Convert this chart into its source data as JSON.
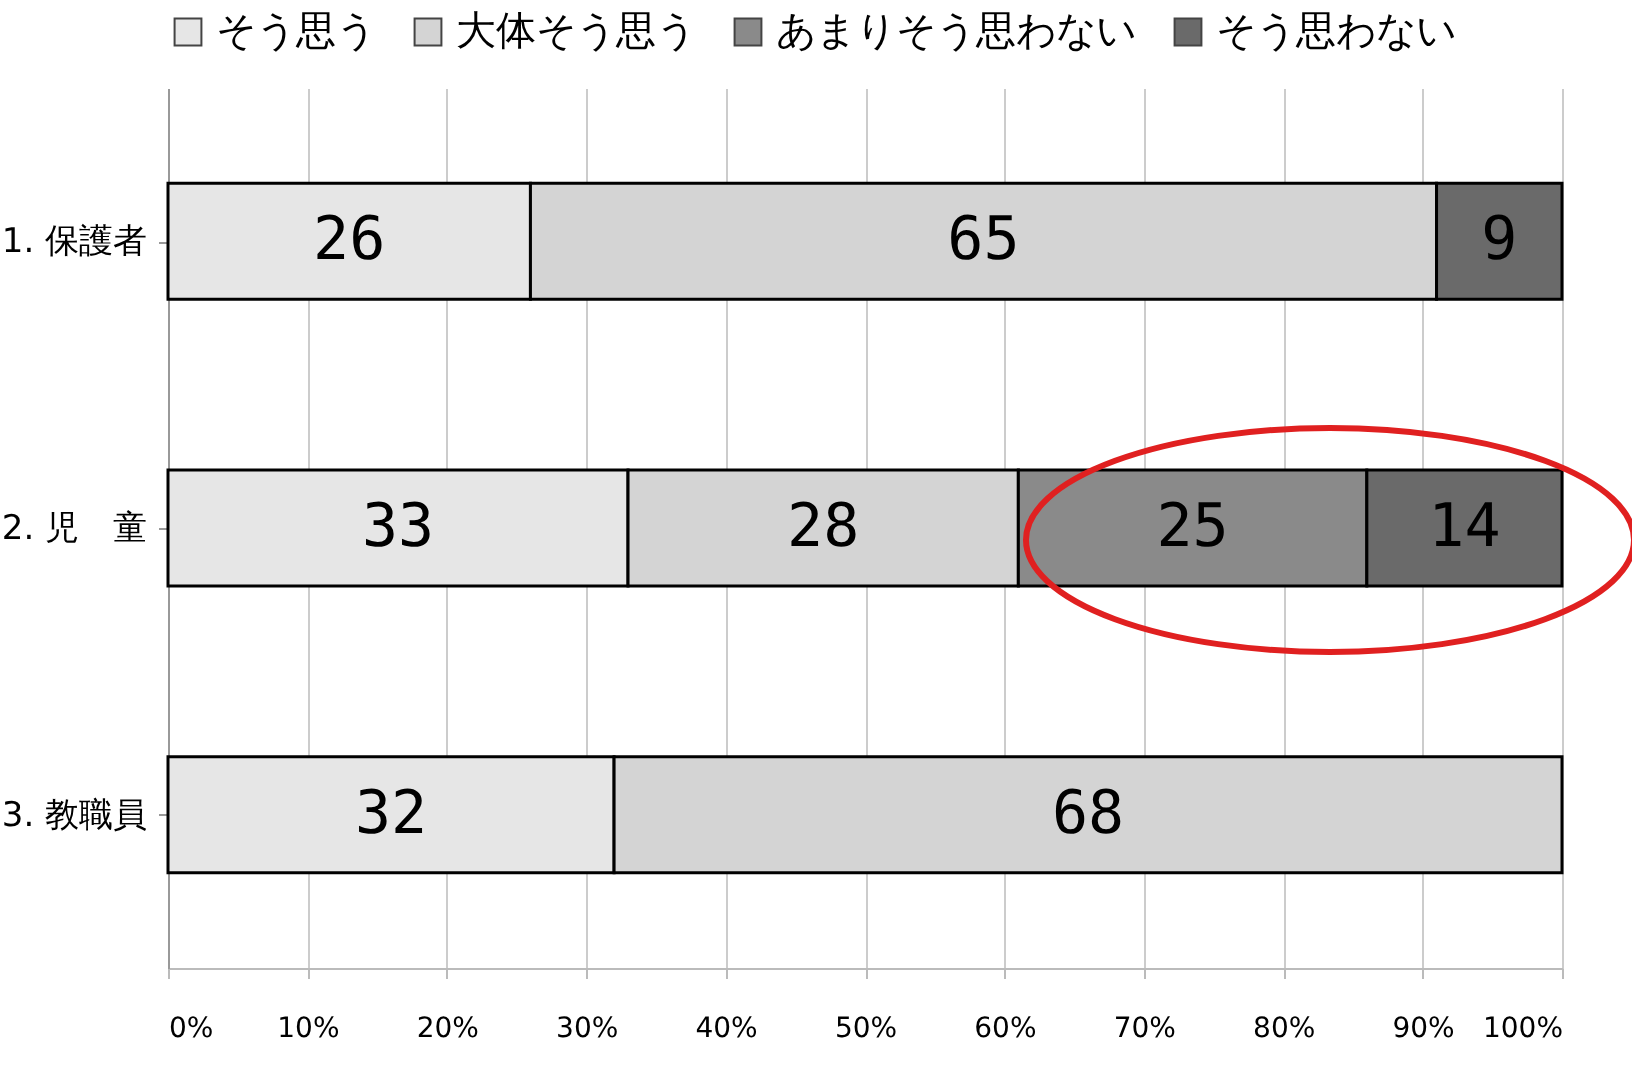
{
  "chart_data": {
    "type": "bar",
    "orientation": "horizontal",
    "stacked": true,
    "categories": [
      "1. 保護者",
      "2. 児　童",
      "3. 教職員"
    ],
    "series": [
      {
        "name": "そう思う",
        "color": "#e6e6e6",
        "values": [
          26,
          33,
          32
        ]
      },
      {
        "name": "大体そう思う",
        "color": "#d4d4d4",
        "values": [
          65,
          28,
          68
        ]
      },
      {
        "name": "あまりそう思わない",
        "color": "#8a8a8a",
        "values": [
          null,
          25,
          null
        ]
      },
      {
        "name": "そう思わない",
        "color": "#6a6a6a",
        "values": [
          9,
          14,
          null
        ]
      }
    ],
    "xlim": [
      0,
      100
    ],
    "xticks": [
      {
        "value": 0,
        "label": "0%"
      },
      {
        "value": 10,
        "label": "10%"
      },
      {
        "value": 20,
        "label": "20%"
      },
      {
        "value": 30,
        "label": "30%"
      },
      {
        "value": 40,
        "label": "40%"
      },
      {
        "value": 50,
        "label": "50%"
      },
      {
        "value": 60,
        "label": "60%"
      },
      {
        "value": 70,
        "label": "70%"
      },
      {
        "value": 80,
        "label": "80%"
      },
      {
        "value": 90,
        "label": "90%"
      },
      {
        "value": 100,
        "label": "100%"
      }
    ],
    "grid": "x",
    "legend": "top",
    "data_labels": true
  }
}
